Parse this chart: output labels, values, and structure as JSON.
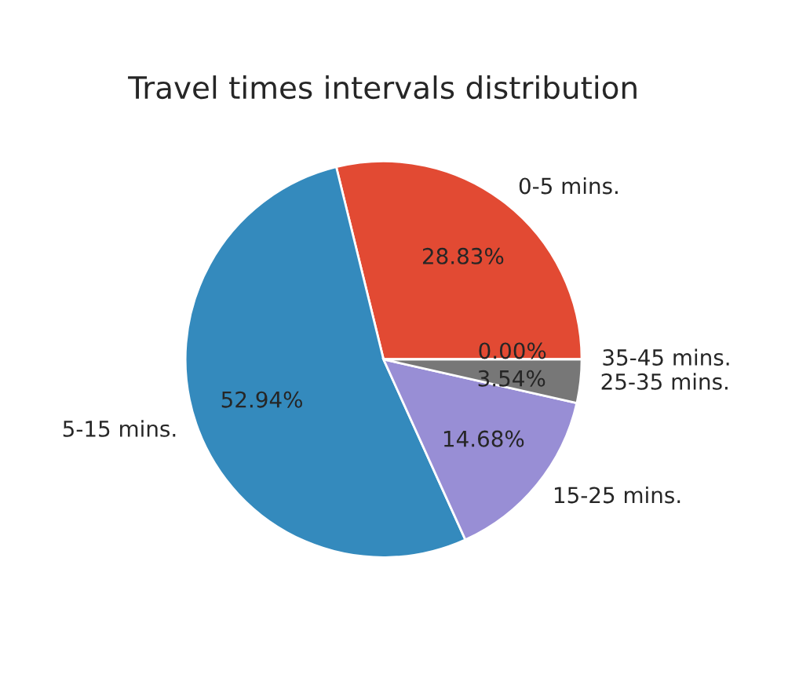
{
  "chart_data": {
    "type": "pie",
    "title": "Travel times intervals distribution",
    "categories": [
      "0-5 mins.",
      "5-15 mins.",
      "15-25 mins.",
      "25-35 mins.",
      "35-45 mins."
    ],
    "values": [
      28.83,
      52.94,
      14.68,
      3.54,
      0.0
    ],
    "colors": [
      "#e24a33",
      "#348abd",
      "#988ed5",
      "#777777",
      "#fbc15e"
    ],
    "value_labels": [
      "28.83%",
      "52.94%",
      "14.68%",
      "3.54%",
      "0.00%"
    ]
  }
}
